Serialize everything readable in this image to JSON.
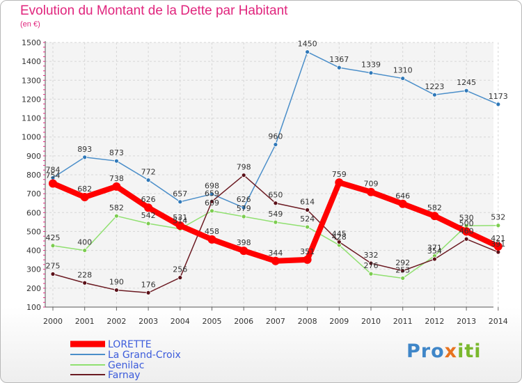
{
  "title": "Evolution du Montant de la Dette par Habitant",
  "unit": "(en €)",
  "logo": {
    "p1": "Pro",
    "p2": "x",
    "p3": "iti"
  },
  "chart_data": {
    "type": "line",
    "title": "Evolution du Montant de la Dette par Habitant",
    "ylabel": "(en €)",
    "x": [
      "2000",
      "2001",
      "2002",
      "2003",
      "2004",
      "2005",
      "2006",
      "2007",
      "2008",
      "2009",
      "2010",
      "2011",
      "2012",
      "2013",
      "2014"
    ],
    "ylim": [
      100,
      1500
    ],
    "yticks": [
      100,
      200,
      300,
      400,
      500,
      600,
      700,
      800,
      900,
      1000,
      1100,
      1200,
      1300,
      1400,
      1500
    ],
    "grid": true,
    "legend_position": "bottom-left",
    "series": [
      {
        "name": "LORETTE",
        "color": "#ff0000",
        "values": [
          754,
          682,
          738,
          626,
          531,
          458,
          398,
          344,
          351,
          759,
          709,
          646,
          582,
          500,
          421
        ]
      },
      {
        "name": "La Grand-Croix",
        "color": "#4a8ec9",
        "values": [
          784,
          893,
          873,
          772,
          657,
          698,
          626,
          960,
          1450,
          1367,
          1339,
          1310,
          1223,
          1245,
          1173
        ]
      },
      {
        "name": "Genilac",
        "color": "#90e070",
        "values": [
          425,
          400,
          582,
          542,
          514,
          609,
          579,
          549,
          524,
          428,
          276,
          253,
          371,
          530,
          532
        ]
      },
      {
        "name": "Farnay",
        "color": "#6b1a22",
        "values": [
          275,
          228,
          190,
          176,
          256,
          659,
          798,
          650,
          614,
          445,
          332,
          292,
          354,
          460,
          391
        ]
      }
    ]
  }
}
